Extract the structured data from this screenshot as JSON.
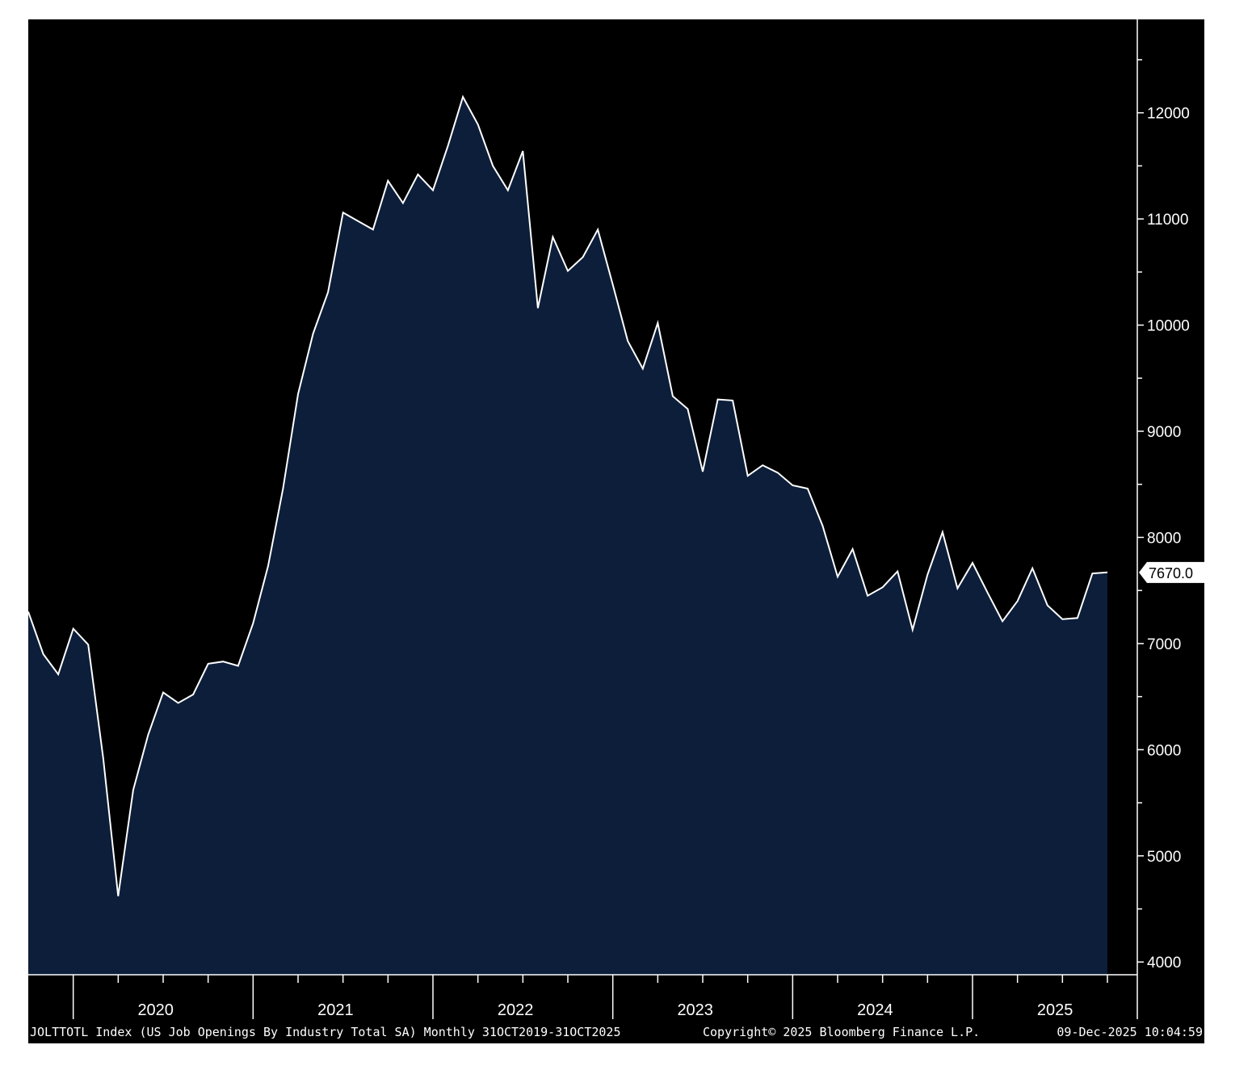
{
  "colors": {
    "background": "#000000",
    "area_fill": "#0c1e3a",
    "line": "#ffffff",
    "axis": "#ffffff"
  },
  "footer": {
    "ticker_info": "JOLTTOTL Index (US Job Openings By Industry Total SA) Monthly 31OCT2019-31OCT2025",
    "copyright": "Copyright© 2025 Bloomberg Finance L.P.",
    "timestamp": "09-Dec-2025 10:04:59"
  },
  "chart_data": {
    "type": "area",
    "x_unit": "month",
    "x": [
      "2019-10",
      "2019-11",
      "2019-12",
      "2020-01",
      "2020-02",
      "2020-03",
      "2020-04",
      "2020-05",
      "2020-06",
      "2020-07",
      "2020-08",
      "2020-09",
      "2020-10",
      "2020-11",
      "2020-12",
      "2021-01",
      "2021-02",
      "2021-03",
      "2021-04",
      "2021-05",
      "2021-06",
      "2021-07",
      "2021-08",
      "2021-09",
      "2021-10",
      "2021-11",
      "2021-12",
      "2022-01",
      "2022-02",
      "2022-03",
      "2022-04",
      "2022-05",
      "2022-06",
      "2022-07",
      "2022-08",
      "2022-09",
      "2022-10",
      "2022-11",
      "2022-12",
      "2023-01",
      "2023-02",
      "2023-03",
      "2023-04",
      "2023-05",
      "2023-06",
      "2023-07",
      "2023-08",
      "2023-09",
      "2023-10",
      "2023-11",
      "2023-12",
      "2024-01",
      "2024-02",
      "2024-03",
      "2024-04",
      "2024-05",
      "2024-06",
      "2024-07",
      "2024-08",
      "2024-09",
      "2024-10",
      "2024-11",
      "2024-12",
      "2025-01",
      "2025-02",
      "2025-03",
      "2025-04",
      "2025-05",
      "2025-06",
      "2025-07",
      "2025-08",
      "2025-09",
      "2025-10"
    ],
    "values": [
      7300,
      6900,
      6710,
      7140,
      6990,
      5920,
      4620,
      5620,
      6140,
      6540,
      6440,
      6520,
      6810,
      6830,
      6790,
      7190,
      7730,
      8460,
      9350,
      9920,
      10310,
      11060,
      10980,
      10900,
      11360,
      11150,
      11420,
      11270,
      11690,
      12150,
      11890,
      11500,
      11270,
      11640,
      10160,
      10830,
      10510,
      10640,
      10900,
      10380,
      9850,
      9590,
      10020,
      9330,
      9210,
      8620,
      9300,
      9290,
      8580,
      8680,
      8610,
      8490,
      8460,
      8110,
      7630,
      7890,
      7450,
      7530,
      7680,
      7130,
      7650,
      8050,
      7520,
      7760,
      7480,
      7210,
      7400,
      7710,
      7360,
      7230,
      7240,
      7660,
      7670
    ],
    "last_value_label": "7670.0",
    "y_ticks": [
      "4000",
      "5000",
      "6000",
      "7000",
      "8000",
      "9000",
      "10000",
      "11000",
      "12000"
    ],
    "ylim": [
      3880,
      12880
    ],
    "x_year_labels": [
      "2020",
      "2021",
      "2022",
      "2023",
      "2024",
      "2025"
    ],
    "y_axis_position": "right",
    "grid": false,
    "legend": "none"
  }
}
